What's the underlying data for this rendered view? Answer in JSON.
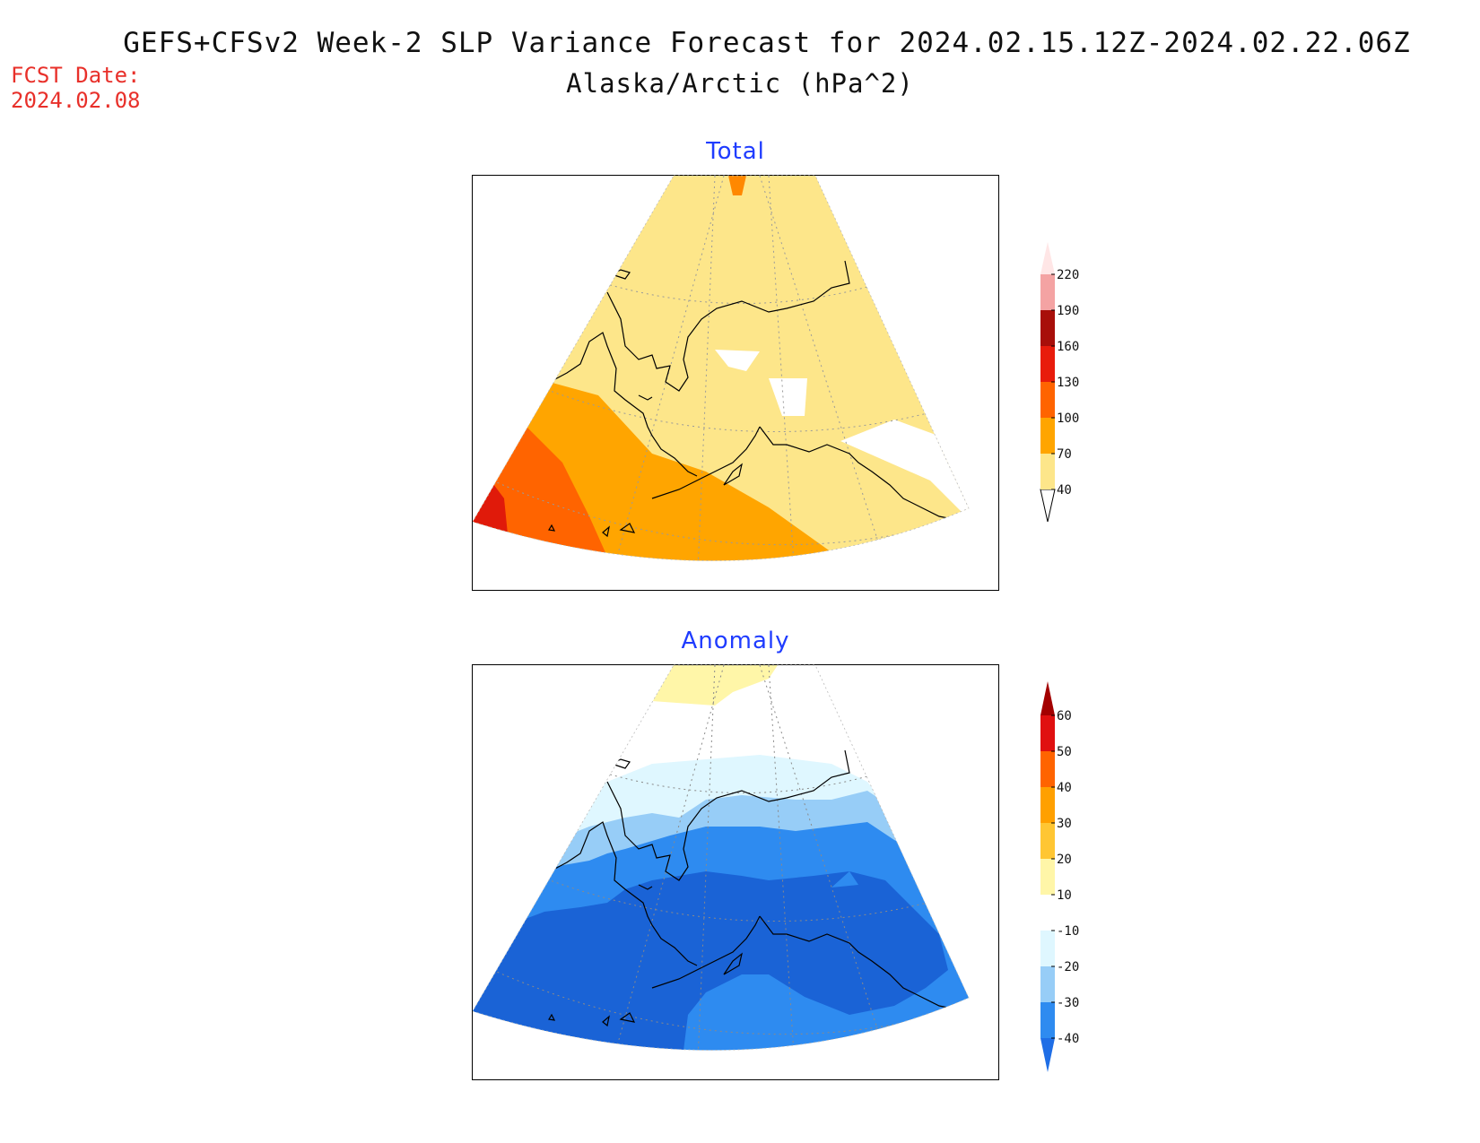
{
  "header": {
    "title": "GEFS+CFSv2 Week-2 SLP Variance Forecast for 2024.02.15.12Z-2024.02.22.06Z",
    "subtitle": "Alaska/Arctic (hPa^2)",
    "fcst_label": "FCST Date:",
    "fcst_date": "2024.02.08"
  },
  "panels": {
    "total": {
      "title": "Total",
      "colorbar": {
        "ticks": [
          "40",
          "70",
          "100",
          "130",
          "160",
          "190",
          "220"
        ],
        "colors": [
          "#fde68a",
          "#ffa500",
          "#ff6400",
          "#e81c0c",
          "#a80f0a",
          "#f4a3a3",
          "#ffe6e6"
        ]
      }
    },
    "anomaly": {
      "title": "Anomaly",
      "colorbar": {
        "ticks": [
          "-40",
          "-30",
          "-20",
          "-10",
          "10",
          "20",
          "30",
          "40",
          "50",
          "60"
        ],
        "colors": [
          "#1f6ee6",
          "#2e8bf0",
          "#97cdf7",
          "#dff7ff",
          "#ffffff",
          "#fff6a8",
          "#ffc633",
          "#ffa000",
          "#ff6400",
          "#e01010",
          "#a30000"
        ]
      }
    }
  },
  "colors": {
    "title": "#111111",
    "fcst": "#e8302a",
    "panel_title": "#1f3cff"
  }
}
